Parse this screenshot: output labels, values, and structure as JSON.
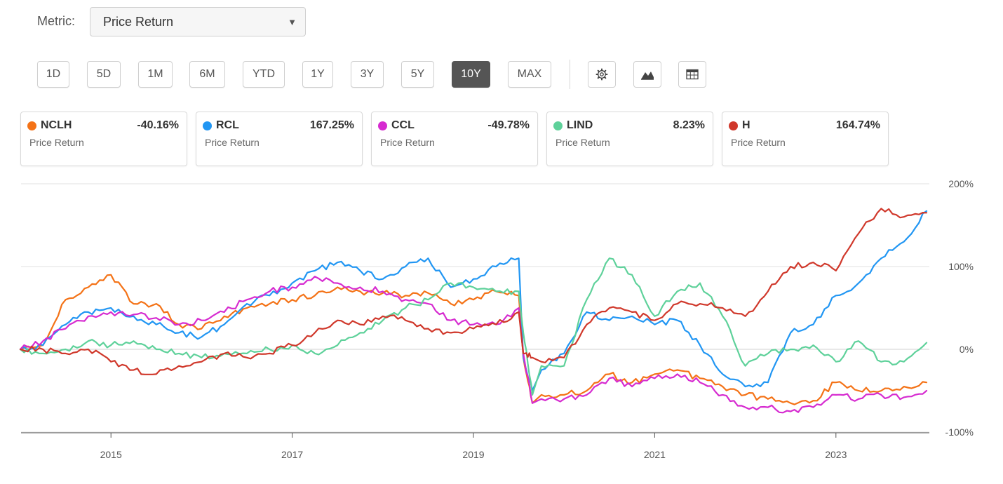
{
  "metric": {
    "label": "Metric:",
    "value": "Price Return"
  },
  "ranges": [
    {
      "label": "1D",
      "active": false
    },
    {
      "label": "5D",
      "active": false
    },
    {
      "label": "1M",
      "active": false
    },
    {
      "label": "6M",
      "active": false
    },
    {
      "label": "YTD",
      "active": false
    },
    {
      "label": "1Y",
      "active": false
    },
    {
      "label": "3Y",
      "active": false
    },
    {
      "label": "5Y",
      "active": false
    },
    {
      "label": "10Y",
      "active": true
    },
    {
      "label": "MAX",
      "active": false
    }
  ],
  "tools": [
    "settings-icon",
    "mountain-chart-icon",
    "table-icon"
  ],
  "tickers": [
    {
      "symbol": "NCLH",
      "value": "-40.16%",
      "metric": "Price Return",
      "color": "#f47216"
    },
    {
      "symbol": "RCL",
      "value": "167.25%",
      "metric": "Price Return",
      "color": "#2196f3"
    },
    {
      "symbol": "CCL",
      "value": "-49.78%",
      "metric": "Price Return",
      "color": "#d62bd0"
    },
    {
      "symbol": "LIND",
      "value": "8.23%",
      "metric": "Price Return",
      "color": "#5ed19a"
    },
    {
      "symbol": "H",
      "value": "164.74%",
      "metric": "Price Return",
      "color": "#d0382b"
    }
  ],
  "chart_data": {
    "type": "line",
    "title": "",
    "xlabel": "",
    "ylabel": "",
    "xlim": [
      2014.0,
      2024.0
    ],
    "ylim": [
      -100,
      200
    ],
    "y_ticks": [
      200,
      100,
      0,
      -100
    ],
    "y_tick_labels": [
      "200%",
      "100%",
      "0%",
      "-100%"
    ],
    "x_ticks": [
      2015,
      2017,
      2019,
      2021,
      2023
    ],
    "x_tick_labels": [
      "2015",
      "2017",
      "2019",
      "2021",
      "2023"
    ],
    "series": [
      {
        "name": "NCLH",
        "color": "#f47216",
        "x": [
          2014.0,
          2014.25,
          2014.5,
          2014.75,
          2015.0,
          2015.25,
          2015.5,
          2015.75,
          2016.0,
          2016.25,
          2016.5,
          2016.75,
          2017.0,
          2017.25,
          2017.5,
          2017.75,
          2018.0,
          2018.25,
          2018.5,
          2018.75,
          2019.0,
          2019.25,
          2019.5,
          2019.55,
          2019.65,
          2019.75,
          2020.0,
          2020.25,
          2020.5,
          2020.75,
          2021.0,
          2021.25,
          2021.5,
          2021.75,
          2022.0,
          2022.25,
          2022.5,
          2022.75,
          2023.0,
          2023.25,
          2023.5,
          2023.75,
          2024.0
        ],
        "y": [
          0,
          5,
          60,
          75,
          90,
          55,
          55,
          30,
          25,
          40,
          50,
          55,
          60,
          65,
          75,
          70,
          68,
          65,
          68,
          55,
          60,
          70,
          65,
          -10,
          -65,
          -55,
          -55,
          -50,
          -30,
          -40,
          -30,
          -25,
          -35,
          -45,
          -55,
          -60,
          -65,
          -62,
          -40,
          -50,
          -50,
          -45,
          -40
        ]
      },
      {
        "name": "RCL",
        "color": "#2196f3",
        "x": [
          2014.0,
          2014.25,
          2014.5,
          2014.75,
          2015.0,
          2015.25,
          2015.5,
          2015.75,
          2016.0,
          2016.25,
          2016.5,
          2016.75,
          2017.0,
          2017.25,
          2017.5,
          2017.75,
          2018.0,
          2018.25,
          2018.5,
          2018.75,
          2019.0,
          2019.25,
          2019.5,
          2019.55,
          2019.65,
          2019.75,
          2020.0,
          2020.25,
          2020.5,
          2020.75,
          2021.0,
          2021.25,
          2021.5,
          2021.75,
          2022.0,
          2022.25,
          2022.5,
          2022.75,
          2023.0,
          2023.25,
          2023.5,
          2023.75,
          2024.0
        ],
        "y": [
          0,
          5,
          30,
          45,
          50,
          40,
          30,
          20,
          15,
          30,
          55,
          65,
          80,
          95,
          105,
          95,
          85,
          100,
          110,
          75,
          85,
          100,
          110,
          -10,
          -50,
          -25,
          -5,
          45,
          35,
          40,
          30,
          35,
          5,
          -30,
          -45,
          -40,
          20,
          30,
          65,
          80,
          110,
          130,
          167
        ]
      },
      {
        "name": "CCL",
        "color": "#d62bd0",
        "x": [
          2014.0,
          2014.25,
          2014.5,
          2014.75,
          2015.0,
          2015.25,
          2015.5,
          2015.75,
          2016.0,
          2016.25,
          2016.5,
          2016.75,
          2017.0,
          2017.25,
          2017.5,
          2017.75,
          2018.0,
          2018.25,
          2018.5,
          2018.75,
          2019.0,
          2019.25,
          2019.5,
          2019.55,
          2019.65,
          2019.75,
          2020.0,
          2020.25,
          2020.5,
          2020.75,
          2021.0,
          2021.25,
          2021.5,
          2021.75,
          2022.0,
          2022.25,
          2022.5,
          2022.75,
          2023.0,
          2023.25,
          2023.5,
          2023.75,
          2024.0
        ],
        "y": [
          0,
          10,
          25,
          40,
          45,
          42,
          38,
          30,
          35,
          45,
          60,
          70,
          75,
          88,
          80,
          75,
          70,
          60,
          55,
          35,
          30,
          30,
          50,
          -5,
          -65,
          -60,
          -60,
          -55,
          -35,
          -45,
          -35,
          -30,
          -40,
          -55,
          -70,
          -70,
          -75,
          -70,
          -55,
          -60,
          -55,
          -58,
          -50
        ]
      },
      {
        "name": "LIND",
        "color": "#5ed19a",
        "x": [
          2014.0,
          2014.25,
          2014.5,
          2014.75,
          2015.0,
          2015.25,
          2015.5,
          2015.75,
          2016.0,
          2016.25,
          2016.5,
          2016.75,
          2017.0,
          2017.25,
          2017.5,
          2017.75,
          2018.0,
          2018.25,
          2018.5,
          2018.75,
          2019.0,
          2019.25,
          2019.5,
          2019.55,
          2019.65,
          2019.75,
          2020.0,
          2020.25,
          2020.5,
          2020.75,
          2021.0,
          2021.25,
          2021.5,
          2021.75,
          2022.0,
          2022.25,
          2022.5,
          2022.75,
          2023.0,
          2023.25,
          2023.5,
          2023.75,
          2024.0
        ],
        "y": [
          0,
          -5,
          0,
          10,
          5,
          10,
          0,
          -5,
          -10,
          -5,
          -5,
          0,
          5,
          -5,
          5,
          20,
          35,
          50,
          60,
          80,
          75,
          70,
          70,
          20,
          -55,
          -20,
          -20,
          60,
          110,
          90,
          40,
          70,
          80,
          40,
          -20,
          -5,
          0,
          5,
          -15,
          10,
          -15,
          -15,
          8
        ]
      },
      {
        "name": "H",
        "color": "#d0382b",
        "x": [
          2014.0,
          2014.25,
          2014.5,
          2014.75,
          2015.0,
          2015.25,
          2015.5,
          2015.75,
          2016.0,
          2016.25,
          2016.5,
          2016.75,
          2017.0,
          2017.25,
          2017.5,
          2017.75,
          2018.0,
          2018.25,
          2018.5,
          2018.75,
          2019.0,
          2019.25,
          2019.5,
          2019.55,
          2019.65,
          2019.75,
          2020.0,
          2020.25,
          2020.5,
          2020.75,
          2021.0,
          2021.25,
          2021.5,
          2021.75,
          2022.0,
          2022.25,
          2022.5,
          2022.75,
          2023.0,
          2023.25,
          2023.5,
          2023.75,
          2024.0
        ],
        "y": [
          0,
          0,
          -5,
          0,
          -15,
          -25,
          -30,
          -20,
          -15,
          -5,
          -10,
          -5,
          5,
          20,
          35,
          30,
          40,
          35,
          25,
          20,
          25,
          30,
          45,
          -5,
          -10,
          -15,
          -10,
          30,
          50,
          45,
          35,
          55,
          55,
          50,
          40,
          70,
          100,
          105,
          95,
          140,
          170,
          160,
          165
        ]
      }
    ]
  }
}
